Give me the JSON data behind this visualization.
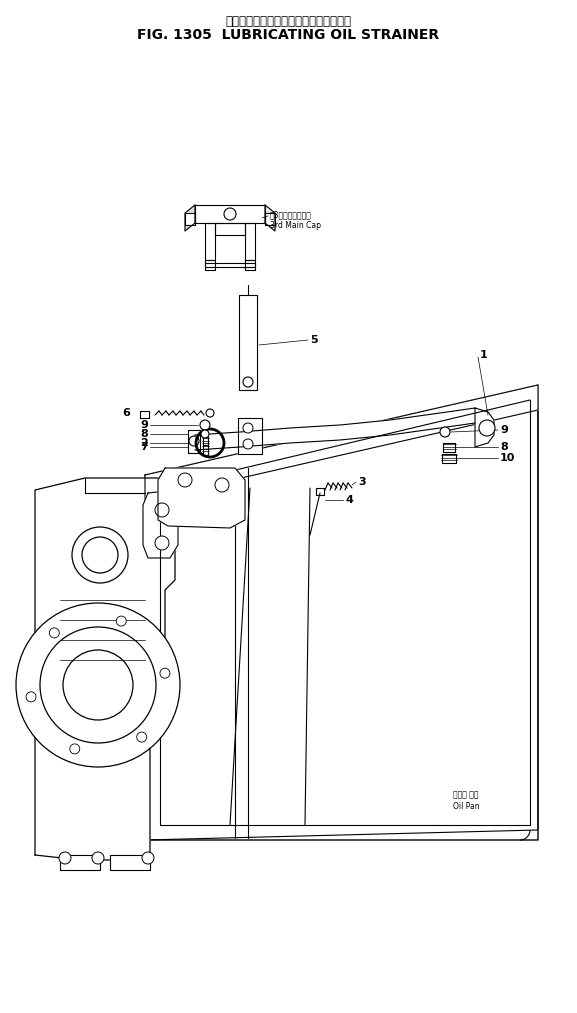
{
  "title_jp": "ルーブリケーティングオイルストレーナ",
  "title_en": "FIG. 1305  LUBRICATING OIL STRAINER",
  "bg_color": "#ffffff",
  "lc": "#000000",
  "ann_cap_jp": "第3メインキャップ",
  "ann_cap_en": "3rd Main Cap",
  "ann_pan_jp": "オイル パン",
  "ann_pan_en": "Oil Pan"
}
